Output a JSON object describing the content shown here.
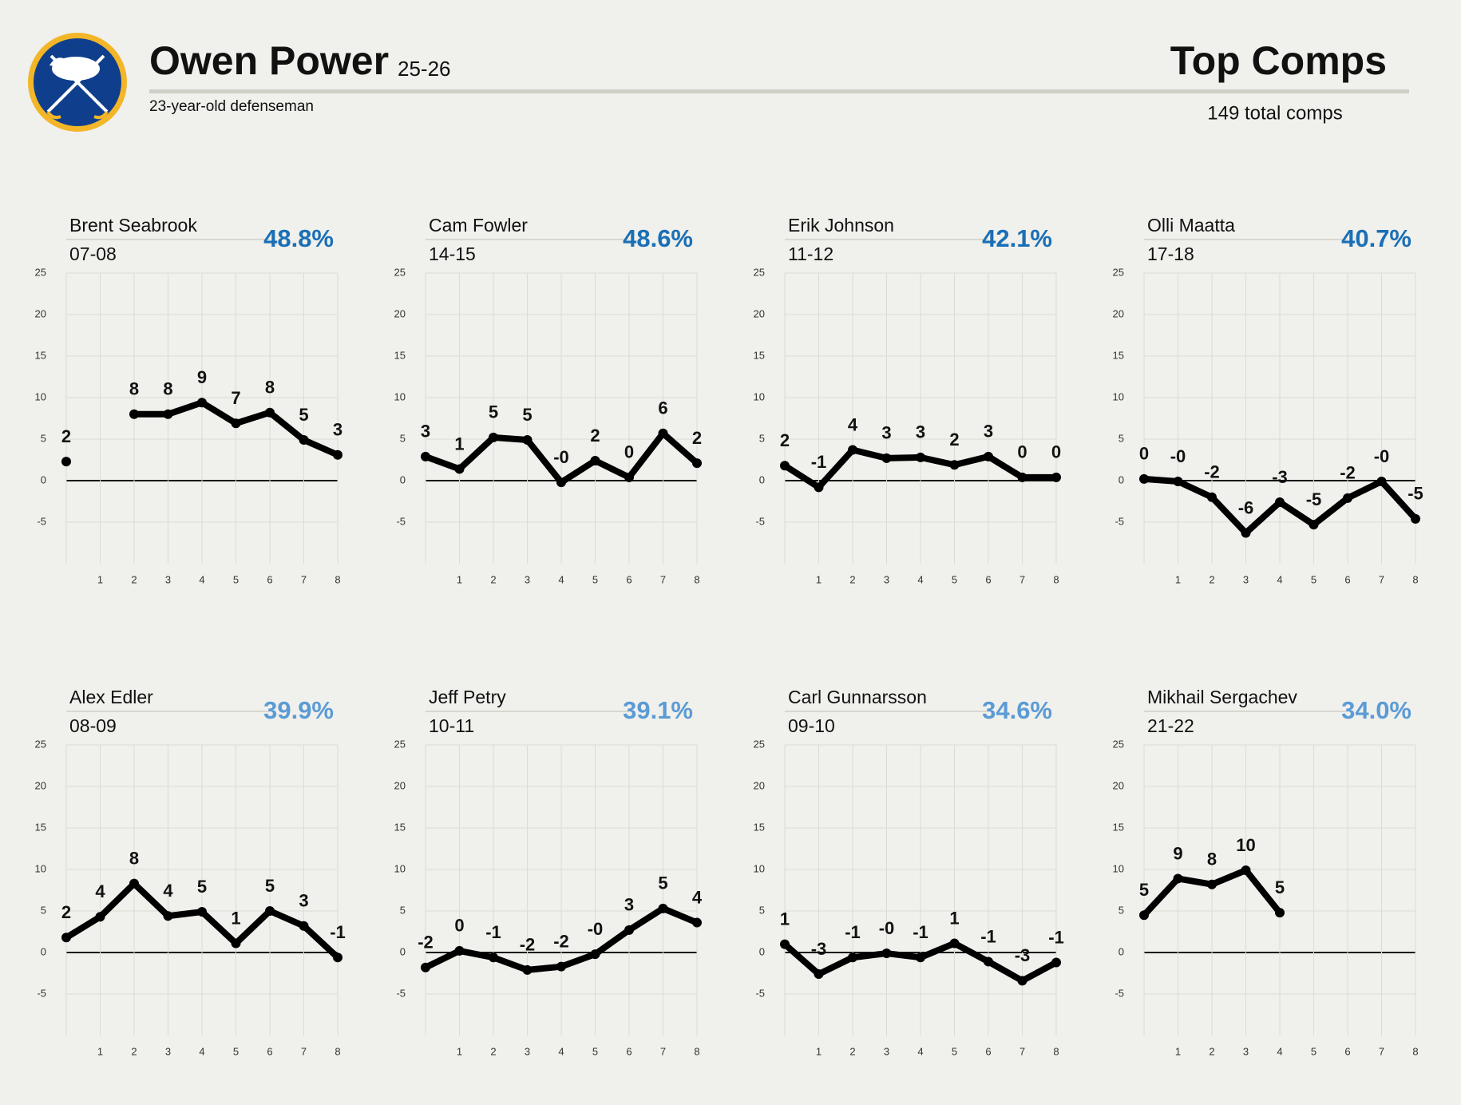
{
  "header": {
    "name": "Owen Power",
    "season": "25-26",
    "description": "23-year-old defenseman",
    "right_title": "Top Comps",
    "right_subtitle": "149 total comps"
  },
  "chart_data": [
    {
      "type": "line",
      "title": "Brent Seabrook",
      "subtitle": "07-08",
      "annotation": "48.8%",
      "annotation_color": "#1a6fb5",
      "color": "#000000",
      "x": [
        0,
        1,
        2,
        3,
        4,
        5,
        6,
        7,
        8
      ],
      "values": [
        2.3,
        null,
        8,
        8,
        9.4,
        6.9,
        8.2,
        4.9,
        3.1
      ],
      "value_labels": [
        "2",
        null,
        "8",
        "8",
        "9",
        "7",
        "8",
        "5",
        "3"
      ],
      "xlim": [
        0,
        8
      ],
      "xticks": [
        1,
        2,
        3,
        4,
        5,
        6,
        7,
        8
      ],
      "ylim": [
        -10,
        25
      ],
      "yticks": [
        -5,
        0,
        5,
        10,
        15,
        20,
        25
      ],
      "grid": true
    },
    {
      "type": "line",
      "title": "Cam Fowler",
      "subtitle": "14-15",
      "annotation": "48.6%",
      "annotation_color": "#1a6fb5",
      "color": "#000000",
      "x": [
        0,
        1,
        2,
        3,
        4,
        5,
        6,
        7,
        8
      ],
      "values": [
        2.9,
        1.4,
        5.2,
        4.9,
        -0.2,
        2.4,
        0.4,
        5.7,
        2.1
      ],
      "value_labels": [
        "3",
        "1",
        "5",
        "5",
        "-0",
        "2",
        "0",
        "6",
        "2"
      ],
      "xlim": [
        0,
        8
      ],
      "xticks": [
        1,
        2,
        3,
        4,
        5,
        6,
        7,
        8
      ],
      "ylim": [
        -10,
        25
      ],
      "yticks": [
        -5,
        0,
        5,
        10,
        15,
        20,
        25
      ],
      "grid": true
    },
    {
      "type": "line",
      "title": "Erik Johnson",
      "subtitle": "11-12",
      "annotation": "42.1%",
      "annotation_color": "#1a6fb5",
      "color": "#000000",
      "x": [
        0,
        1,
        2,
        3,
        4,
        5,
        6,
        7,
        8
      ],
      "values": [
        1.8,
        -0.8,
        3.7,
        2.7,
        2.8,
        1.9,
        2.9,
        0.4,
        0.4
      ],
      "value_labels": [
        "2",
        "-1",
        "4",
        "3",
        "3",
        "2",
        "3",
        "0",
        "0"
      ],
      "xlim": [
        0,
        8
      ],
      "xticks": [
        1,
        2,
        3,
        4,
        5,
        6,
        7,
        8
      ],
      "ylim": [
        -10,
        25
      ],
      "yticks": [
        -5,
        0,
        5,
        10,
        15,
        20,
        25
      ],
      "grid": true
    },
    {
      "type": "line",
      "title": "Olli Maatta",
      "subtitle": "17-18",
      "annotation": "40.7%",
      "annotation_color": "#1a6fb5",
      "color": "#000000",
      "x": [
        0,
        1,
        2,
        3,
        4,
        5,
        6,
        7,
        8
      ],
      "values": [
        0.2,
        -0.1,
        -2,
        -6.3,
        -2.6,
        -5.3,
        -2.1,
        -0.1,
        -4.6
      ],
      "value_labels": [
        "0",
        "-0",
        "-2",
        "-6",
        "-3",
        "-5",
        "-2",
        "-0",
        "-5"
      ],
      "xlim": [
        0,
        8
      ],
      "xticks": [
        1,
        2,
        3,
        4,
        5,
        6,
        7,
        8
      ],
      "ylim": [
        -10,
        25
      ],
      "yticks": [
        -5,
        0,
        5,
        10,
        15,
        20,
        25
      ],
      "grid": true
    },
    {
      "type": "line",
      "title": "Alex Edler",
      "subtitle": "08-09",
      "annotation": "39.9%",
      "annotation_color": "#5b9bd5",
      "color": "#000000",
      "x": [
        0,
        1,
        2,
        3,
        4,
        5,
        6,
        7,
        8
      ],
      "values": [
        1.8,
        4.3,
        8.3,
        4.4,
        4.9,
        1.1,
        5,
        3.2,
        -0.6
      ],
      "value_labels": [
        "2",
        "4",
        "8",
        "4",
        "5",
        "1",
        "5",
        "3",
        "-1"
      ],
      "xlim": [
        0,
        8
      ],
      "xticks": [
        1,
        2,
        3,
        4,
        5,
        6,
        7,
        8
      ],
      "ylim": [
        -10,
        25
      ],
      "yticks": [
        -5,
        0,
        5,
        10,
        15,
        20,
        25
      ],
      "grid": true
    },
    {
      "type": "line",
      "title": "Jeff Petry",
      "subtitle": "10-11",
      "annotation": "39.1%",
      "annotation_color": "#5b9bd5",
      "color": "#000000",
      "x": [
        0,
        1,
        2,
        3,
        4,
        5,
        6,
        7,
        8
      ],
      "values": [
        -1.8,
        0.2,
        -0.6,
        -2.1,
        -1.7,
        -0.2,
        2.7,
        5.3,
        3.6
      ],
      "value_labels": [
        "-2",
        "0",
        "-1",
        "-2",
        "-2",
        "-0",
        "3",
        "5",
        "4"
      ],
      "xlim": [
        0,
        8
      ],
      "xticks": [
        1,
        2,
        3,
        4,
        5,
        6,
        7,
        8
      ],
      "ylim": [
        -10,
        25
      ],
      "yticks": [
        -5,
        0,
        5,
        10,
        15,
        20,
        25
      ],
      "grid": true
    },
    {
      "type": "line",
      "title": "Carl Gunnarsson",
      "subtitle": "09-10",
      "annotation": "34.6%",
      "annotation_color": "#5b9bd5",
      "color": "#000000",
      "x": [
        0,
        1,
        2,
        3,
        4,
        5,
        6,
        7,
        8
      ],
      "values": [
        1,
        -2.6,
        -0.6,
        -0.1,
        -0.6,
        1.1,
        -1.1,
        -3.4,
        -1.2
      ],
      "value_labels": [
        "1",
        "-3",
        "-1",
        "-0",
        "-1",
        "1",
        "-1",
        "-3",
        "-1"
      ],
      "xlim": [
        0,
        8
      ],
      "xticks": [
        1,
        2,
        3,
        4,
        5,
        6,
        7,
        8
      ],
      "ylim": [
        -10,
        25
      ],
      "yticks": [
        -5,
        0,
        5,
        10,
        15,
        20,
        25
      ],
      "grid": true
    },
    {
      "type": "line",
      "title": "Mikhail Sergachev",
      "subtitle": "21-22",
      "annotation": "34.0%",
      "annotation_color": "#5b9bd5",
      "color": "#000000",
      "x": [
        0,
        1,
        2,
        3,
        4,
        5,
        6,
        7,
        8
      ],
      "values": [
        4.5,
        8.9,
        8.2,
        9.9,
        4.8,
        null,
        null,
        null,
        null
      ],
      "value_labels": [
        "5",
        "9",
        "8",
        "10",
        "5",
        null,
        null,
        null,
        null
      ],
      "xlim": [
        0,
        8
      ],
      "xticks": [
        1,
        2,
        3,
        4,
        5,
        6,
        7,
        8
      ],
      "ylim": [
        -10,
        25
      ],
      "yticks": [
        -5,
        0,
        5,
        10,
        15,
        20,
        25
      ],
      "grid": true
    }
  ]
}
